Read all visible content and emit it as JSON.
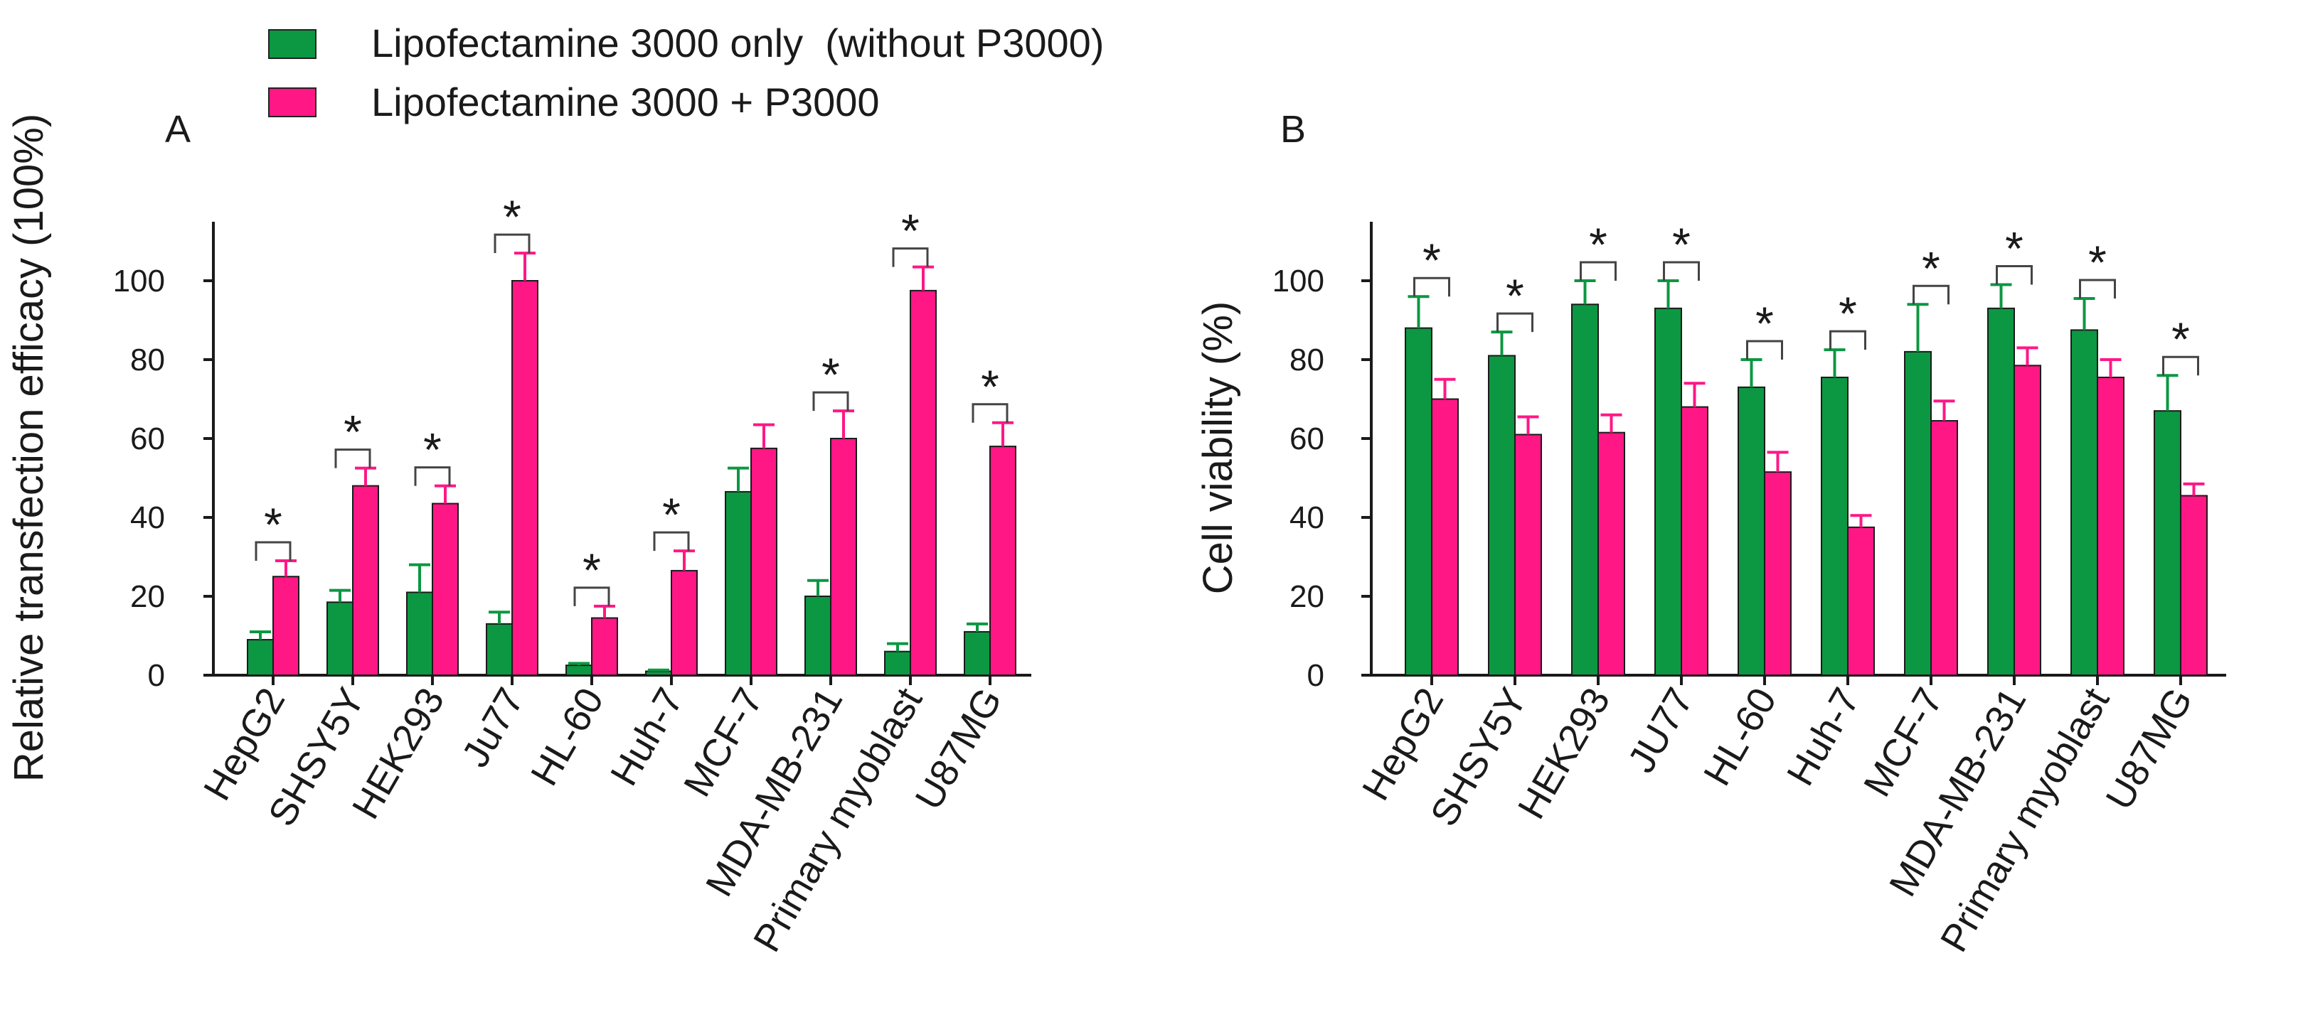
{
  "legend": [
    {
      "label": "Lipofectamine 3000 only  (without P3000)",
      "color": "#0c9742"
    },
    {
      "label": "Lipofectamine 3000 + P3000",
      "color": "#ff1786"
    }
  ],
  "chart_data": [
    {
      "type": "bar",
      "panel": "A",
      "title": "",
      "xlabel": "",
      "ylabel": "Relative transfection efficacy (100%)",
      "ylim": [
        0,
        115
      ],
      "yticks": [
        0,
        20,
        40,
        60,
        80,
        100
      ],
      "categories": [
        "HepG2",
        "SHSY5Y",
        "HEK293",
        "Ju77",
        "HL-60",
        "Huh-7",
        "MCF-7",
        "MDA-MB-231",
        "Primary myoblast",
        "U87MG"
      ],
      "series": [
        {
          "name": "Lipofectamine 3000 only  (without P3000)",
          "color": "#0c9742",
          "values": [
            9,
            18.5,
            21,
            13,
            2.5,
            1,
            46.5,
            20,
            6,
            11
          ],
          "errors": [
            2,
            3,
            7,
            3,
            0.5,
            0.3,
            6,
            4,
            2,
            2
          ]
        },
        {
          "name": "Lipofectamine 3000 + P3000",
          "color": "#ff1786",
          "values": [
            25,
            48,
            43.5,
            100,
            14.5,
            26.5,
            57.5,
            60,
            97.5,
            58
          ],
          "errors": [
            4,
            4.5,
            4.5,
            7,
            3,
            5,
            6,
            7,
            6,
            6
          ]
        }
      ],
      "significance": [
        true,
        true,
        true,
        true,
        true,
        true,
        false,
        true,
        true,
        true
      ],
      "sig_symbol": "*"
    },
    {
      "type": "bar",
      "panel": "B",
      "title": "",
      "xlabel": "",
      "ylabel": "Cell viability (%)",
      "ylim": [
        0,
        115
      ],
      "yticks": [
        0,
        20,
        40,
        60,
        80,
        100
      ],
      "categories": [
        "HepG2",
        "SHSY5Y",
        "HEK293",
        "JU77",
        "HL-60",
        "Huh-7",
        "MCF-7",
        "MDA-MB-231",
        "Primary myoblast",
        "U87MG"
      ],
      "series": [
        {
          "name": "Lipofectamine 3000 only  (without P3000)",
          "color": "#0c9742",
          "values": [
            88,
            81,
            94,
            93,
            73,
            75.5,
            82,
            93,
            87.5,
            67
          ],
          "errors": [
            8,
            6,
            6,
            7,
            7,
            7,
            12,
            6,
            8,
            9
          ]
        },
        {
          "name": "Lipofectamine 3000 + P3000",
          "color": "#ff1786",
          "values": [
            70,
            61,
            61.5,
            68,
            51.5,
            37.5,
            64.5,
            78.5,
            75.5,
            45.5
          ],
          "errors": [
            5,
            4.5,
            4.5,
            6,
            5,
            3,
            5,
            4.5,
            4.5,
            3
          ]
        }
      ],
      "significance": [
        true,
        true,
        true,
        true,
        true,
        true,
        true,
        true,
        true,
        true
      ],
      "sig_symbol": "*"
    }
  ]
}
